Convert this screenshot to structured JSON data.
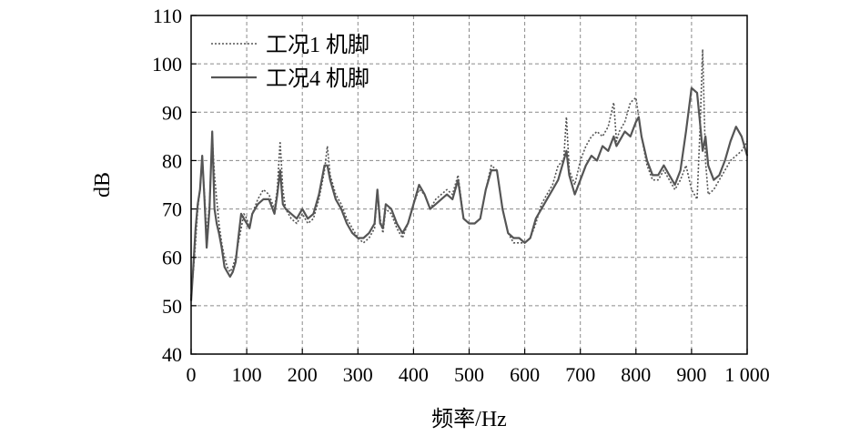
{
  "chart_data": {
    "type": "line",
    "xlabel": "频率/Hz",
    "ylabel": "dB",
    "xlim": [
      0,
      1000
    ],
    "ylim": [
      40,
      110
    ],
    "grid": true,
    "legend_position": "top-left",
    "x_ticks": [
      0,
      100,
      200,
      300,
      400,
      500,
      600,
      700,
      800,
      900,
      1000
    ],
    "x_tick_labels": [
      "0",
      "100",
      "200",
      "300",
      "400",
      "500",
      "600",
      "700",
      "800",
      "900",
      "1 000"
    ],
    "y_ticks": [
      40,
      50,
      60,
      70,
      80,
      90,
      100,
      110
    ],
    "y_tick_labels": [
      "40",
      "50",
      "60",
      "70",
      "80",
      "90",
      "100",
      "110"
    ],
    "series": [
      {
        "name": "工况1 机脚",
        "style": "dotted",
        "color": "#555555",
        "points": [
          [
            0,
            52
          ],
          [
            4,
            57
          ],
          [
            8,
            63
          ],
          [
            12,
            70
          ],
          [
            16,
            74
          ],
          [
            20,
            80
          ],
          [
            24,
            73
          ],
          [
            28,
            65
          ],
          [
            33,
            71
          ],
          [
            38,
            85
          ],
          [
            42,
            77
          ],
          [
            46,
            72
          ],
          [
            50,
            67
          ],
          [
            55,
            63
          ],
          [
            60,
            60
          ],
          [
            65,
            58
          ],
          [
            70,
            57
          ],
          [
            75,
            58
          ],
          [
            80,
            60
          ],
          [
            85,
            63
          ],
          [
            90,
            66
          ],
          [
            95,
            69
          ],
          [
            100,
            68
          ],
          [
            105,
            66
          ],
          [
            110,
            69
          ],
          [
            120,
            72
          ],
          [
            130,
            74
          ],
          [
            140,
            73
          ],
          [
            150,
            70
          ],
          [
            155,
            74
          ],
          [
            160,
            84
          ],
          [
            165,
            74
          ],
          [
            170,
            70
          ],
          [
            180,
            68
          ],
          [
            190,
            67
          ],
          [
            200,
            69
          ],
          [
            210,
            67
          ],
          [
            220,
            68
          ],
          [
            230,
            72
          ],
          [
            240,
            78
          ],
          [
            245,
            83
          ],
          [
            250,
            77
          ],
          [
            260,
            73
          ],
          [
            270,
            71
          ],
          [
            280,
            68
          ],
          [
            290,
            66
          ],
          [
            300,
            64
          ],
          [
            310,
            63
          ],
          [
            320,
            64
          ],
          [
            330,
            66
          ],
          [
            335,
            74
          ],
          [
            340,
            68
          ],
          [
            345,
            65
          ],
          [
            350,
            70
          ],
          [
            360,
            69
          ],
          [
            370,
            66
          ],
          [
            380,
            64
          ],
          [
            390,
            67
          ],
          [
            400,
            71
          ],
          [
            410,
            74
          ],
          [
            420,
            73
          ],
          [
            430,
            70
          ],
          [
            440,
            72
          ],
          [
            450,
            73
          ],
          [
            460,
            74
          ],
          [
            470,
            73
          ],
          [
            480,
            77
          ],
          [
            490,
            68
          ],
          [
            500,
            67
          ],
          [
            510,
            67
          ],
          [
            520,
            68
          ],
          [
            530,
            74
          ],
          [
            540,
            79
          ],
          [
            550,
            78
          ],
          [
            560,
            70
          ],
          [
            570,
            65
          ],
          [
            580,
            63
          ],
          [
            590,
            63
          ],
          [
            600,
            63
          ],
          [
            610,
            64
          ],
          [
            620,
            67
          ],
          [
            630,
            71
          ],
          [
            640,
            73
          ],
          [
            650,
            75
          ],
          [
            660,
            79
          ],
          [
            670,
            80
          ],
          [
            675,
            89
          ],
          [
            680,
            78
          ],
          [
            690,
            75
          ],
          [
            700,
            80
          ],
          [
            710,
            83
          ],
          [
            720,
            85
          ],
          [
            730,
            86
          ],
          [
            740,
            85
          ],
          [
            750,
            87
          ],
          [
            760,
            92
          ],
          [
            765,
            84
          ],
          [
            770,
            86
          ],
          [
            780,
            88
          ],
          [
            790,
            92
          ],
          [
            800,
            93
          ],
          [
            805,
            89
          ],
          [
            810,
            85
          ],
          [
            820,
            79
          ],
          [
            830,
            76
          ],
          [
            840,
            76
          ],
          [
            850,
            78
          ],
          [
            860,
            76
          ],
          [
            870,
            74
          ],
          [
            880,
            76
          ],
          [
            890,
            79
          ],
          [
            900,
            74
          ],
          [
            910,
            72
          ],
          [
            915,
            86
          ],
          [
            920,
            103
          ],
          [
            925,
            80
          ],
          [
            930,
            73
          ],
          [
            940,
            74
          ],
          [
            950,
            76
          ],
          [
            960,
            78
          ],
          [
            970,
            80
          ],
          [
            980,
            81
          ],
          [
            990,
            82
          ],
          [
            1000,
            84
          ]
        ]
      },
      {
        "name": "工况4 机脚",
        "style": "solid",
        "color": "#555555",
        "points": [
          [
            0,
            51
          ],
          [
            4,
            58
          ],
          [
            8,
            66
          ],
          [
            12,
            71
          ],
          [
            16,
            74
          ],
          [
            20,
            81
          ],
          [
            24,
            72
          ],
          [
            28,
            62
          ],
          [
            33,
            70
          ],
          [
            38,
            86
          ],
          [
            42,
            70
          ],
          [
            46,
            67
          ],
          [
            50,
            65
          ],
          [
            55,
            62
          ],
          [
            60,
            58
          ],
          [
            65,
            57
          ],
          [
            70,
            56
          ],
          [
            75,
            57
          ],
          [
            80,
            59
          ],
          [
            85,
            64
          ],
          [
            90,
            69
          ],
          [
            95,
            68
          ],
          [
            100,
            67
          ],
          [
            105,
            66
          ],
          [
            110,
            69
          ],
          [
            120,
            71
          ],
          [
            130,
            72
          ],
          [
            140,
            72
          ],
          [
            150,
            69
          ],
          [
            155,
            73
          ],
          [
            160,
            78
          ],
          [
            165,
            71
          ],
          [
            170,
            70
          ],
          [
            180,
            69
          ],
          [
            190,
            68
          ],
          [
            200,
            70
          ],
          [
            210,
            68
          ],
          [
            220,
            69
          ],
          [
            230,
            73
          ],
          [
            240,
            79
          ],
          [
            245,
            79
          ],
          [
            250,
            76
          ],
          [
            260,
            72
          ],
          [
            270,
            70
          ],
          [
            280,
            67
          ],
          [
            290,
            65
          ],
          [
            300,
            64
          ],
          [
            310,
            64
          ],
          [
            320,
            65
          ],
          [
            330,
            67
          ],
          [
            335,
            74
          ],
          [
            340,
            67
          ],
          [
            345,
            66
          ],
          [
            350,
            71
          ],
          [
            360,
            70
          ],
          [
            370,
            67
          ],
          [
            380,
            65
          ],
          [
            390,
            67
          ],
          [
            400,
            71
          ],
          [
            410,
            75
          ],
          [
            420,
            73
          ],
          [
            430,
            70
          ],
          [
            440,
            71
          ],
          [
            450,
            72
          ],
          [
            460,
            73
          ],
          [
            470,
            72
          ],
          [
            480,
            76
          ],
          [
            490,
            68
          ],
          [
            500,
            67
          ],
          [
            510,
            67
          ],
          [
            520,
            68
          ],
          [
            530,
            74
          ],
          [
            540,
            78
          ],
          [
            550,
            78
          ],
          [
            560,
            70
          ],
          [
            570,
            65
          ],
          [
            580,
            64
          ],
          [
            590,
            64
          ],
          [
            600,
            63
          ],
          [
            610,
            64
          ],
          [
            620,
            68
          ],
          [
            630,
            70
          ],
          [
            640,
            72
          ],
          [
            650,
            74
          ],
          [
            660,
            76
          ],
          [
            670,
            80
          ],
          [
            675,
            82
          ],
          [
            680,
            77
          ],
          [
            690,
            73
          ],
          [
            700,
            76
          ],
          [
            710,
            79
          ],
          [
            720,
            81
          ],
          [
            730,
            80
          ],
          [
            740,
            83
          ],
          [
            750,
            82
          ],
          [
            760,
            85
          ],
          [
            765,
            83
          ],
          [
            770,
            84
          ],
          [
            780,
            86
          ],
          [
            790,
            85
          ],
          [
            800,
            88
          ],
          [
            805,
            89
          ],
          [
            810,
            85
          ],
          [
            820,
            80
          ],
          [
            830,
            77
          ],
          [
            840,
            77
          ],
          [
            850,
            79
          ],
          [
            860,
            77
          ],
          [
            870,
            75
          ],
          [
            880,
            78
          ],
          [
            890,
            86
          ],
          [
            900,
            95
          ],
          [
            910,
            94
          ],
          [
            915,
            88
          ],
          [
            920,
            82
          ],
          [
            925,
            85
          ],
          [
            930,
            79
          ],
          [
            940,
            76
          ],
          [
            950,
            77
          ],
          [
            960,
            80
          ],
          [
            970,
            84
          ],
          [
            980,
            87
          ],
          [
            990,
            85
          ],
          [
            1000,
            81
          ]
        ]
      }
    ]
  }
}
